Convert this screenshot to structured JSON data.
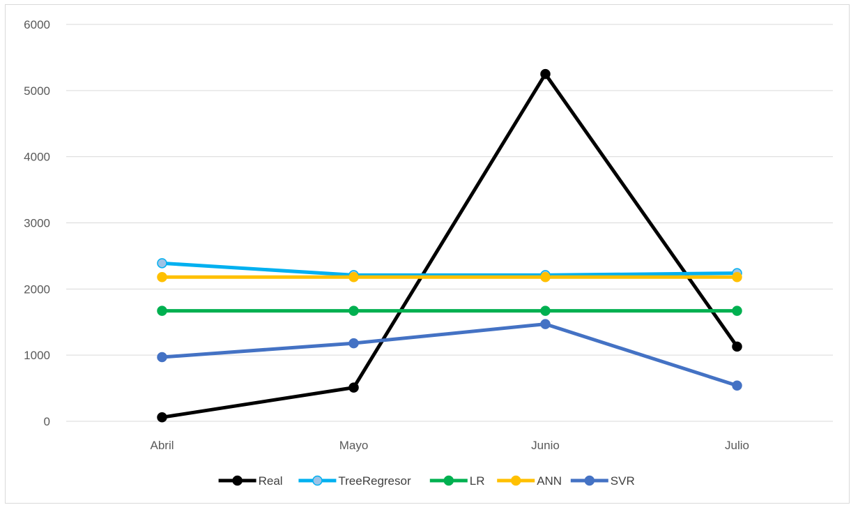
{
  "chart_data": {
    "type": "line",
    "title": "",
    "xlabel": "",
    "ylabel": "",
    "categories": [
      "Abril",
      "Mayo",
      "Junio",
      "Julio"
    ],
    "ylim": [
      0,
      6000
    ],
    "yticks": [
      "0",
      "1000",
      "2000",
      "3000",
      "4000",
      "5000",
      "6000"
    ],
    "grid": true,
    "legend_position": "bottom",
    "series": [
      {
        "name": "Real",
        "values": [
          60,
          510,
          5250,
          1130
        ],
        "color": "#000000",
        "marker_fill": "#000000"
      },
      {
        "name": "TreeRegresor",
        "values": [
          2390,
          2210,
          2210,
          2240
        ],
        "color": "#00b0f0",
        "marker_fill": "#9dc3e6"
      },
      {
        "name": "LR",
        "values": [
          1670,
          1670,
          1670,
          1670
        ],
        "color": "#00b050",
        "marker_fill": "#00b050"
      },
      {
        "name": "ANN",
        "values": [
          2180,
          2180,
          2180,
          2180
        ],
        "color": "#ffc000",
        "marker_fill": "#ffc000"
      },
      {
        "name": "SVR",
        "values": [
          970,
          1180,
          1470,
          540
        ],
        "color": "#4472c4",
        "marker_fill": "#4472c4"
      }
    ]
  }
}
